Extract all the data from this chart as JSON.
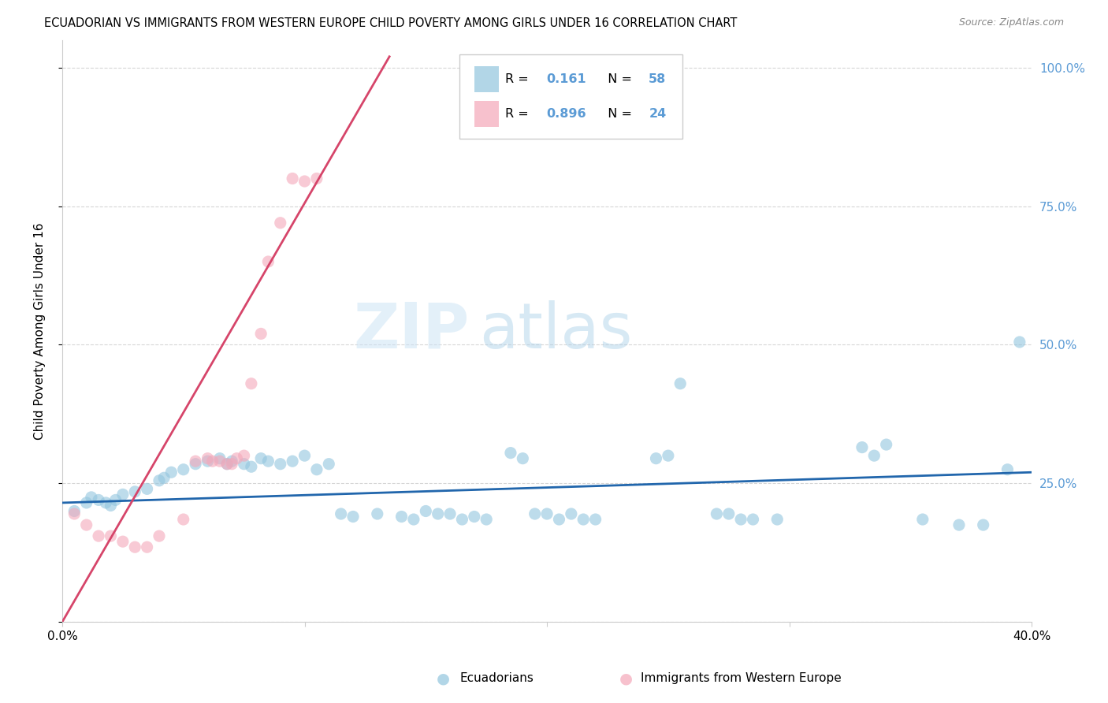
{
  "title": "ECUADORIAN VS IMMIGRANTS FROM WESTERN EUROPE CHILD POVERTY AMONG GIRLS UNDER 16 CORRELATION CHART",
  "source": "Source: ZipAtlas.com",
  "ylabel": "Child Poverty Among Girls Under 16",
  "xlim": [
    0.0,
    0.4
  ],
  "ylim": [
    0.0,
    1.05
  ],
  "color_blue": "#92c5de",
  "color_pink": "#f4a7b9",
  "line_blue": "#2166ac",
  "line_pink": "#d6456a",
  "blue_points": [
    [
      0.005,
      0.2
    ],
    [
      0.01,
      0.215
    ],
    [
      0.012,
      0.225
    ],
    [
      0.015,
      0.22
    ],
    [
      0.018,
      0.215
    ],
    [
      0.02,
      0.21
    ],
    [
      0.022,
      0.22
    ],
    [
      0.025,
      0.23
    ],
    [
      0.03,
      0.235
    ],
    [
      0.035,
      0.24
    ],
    [
      0.04,
      0.255
    ],
    [
      0.042,
      0.26
    ],
    [
      0.045,
      0.27
    ],
    [
      0.05,
      0.275
    ],
    [
      0.055,
      0.285
    ],
    [
      0.06,
      0.29
    ],
    [
      0.065,
      0.295
    ],
    [
      0.068,
      0.285
    ],
    [
      0.07,
      0.29
    ],
    [
      0.075,
      0.285
    ],
    [
      0.078,
      0.28
    ],
    [
      0.082,
      0.295
    ],
    [
      0.085,
      0.29
    ],
    [
      0.09,
      0.285
    ],
    [
      0.095,
      0.29
    ],
    [
      0.1,
      0.3
    ],
    [
      0.105,
      0.275
    ],
    [
      0.11,
      0.285
    ],
    [
      0.115,
      0.195
    ],
    [
      0.12,
      0.19
    ],
    [
      0.13,
      0.195
    ],
    [
      0.14,
      0.19
    ],
    [
      0.145,
      0.185
    ],
    [
      0.15,
      0.2
    ],
    [
      0.155,
      0.195
    ],
    [
      0.16,
      0.195
    ],
    [
      0.165,
      0.185
    ],
    [
      0.17,
      0.19
    ],
    [
      0.175,
      0.185
    ],
    [
      0.185,
      0.305
    ],
    [
      0.19,
      0.295
    ],
    [
      0.195,
      0.195
    ],
    [
      0.2,
      0.195
    ],
    [
      0.205,
      0.185
    ],
    [
      0.21,
      0.195
    ],
    [
      0.215,
      0.185
    ],
    [
      0.22,
      0.185
    ],
    [
      0.245,
      0.295
    ],
    [
      0.25,
      0.3
    ],
    [
      0.255,
      0.43
    ],
    [
      0.27,
      0.195
    ],
    [
      0.275,
      0.195
    ],
    [
      0.28,
      0.185
    ],
    [
      0.285,
      0.185
    ],
    [
      0.295,
      0.185
    ],
    [
      0.33,
      0.315
    ],
    [
      0.335,
      0.3
    ],
    [
      0.34,
      0.32
    ],
    [
      0.355,
      0.185
    ],
    [
      0.37,
      0.175
    ],
    [
      0.38,
      0.175
    ],
    [
      0.39,
      0.275
    ],
    [
      0.395,
      0.505
    ]
  ],
  "pink_points": [
    [
      0.005,
      0.195
    ],
    [
      0.01,
      0.175
    ],
    [
      0.015,
      0.155
    ],
    [
      0.02,
      0.155
    ],
    [
      0.025,
      0.145
    ],
    [
      0.03,
      0.135
    ],
    [
      0.035,
      0.135
    ],
    [
      0.04,
      0.155
    ],
    [
      0.05,
      0.185
    ],
    [
      0.055,
      0.29
    ],
    [
      0.06,
      0.295
    ],
    [
      0.062,
      0.29
    ],
    [
      0.065,
      0.29
    ],
    [
      0.068,
      0.285
    ],
    [
      0.07,
      0.285
    ],
    [
      0.072,
      0.295
    ],
    [
      0.075,
      0.3
    ],
    [
      0.078,
      0.43
    ],
    [
      0.082,
      0.52
    ],
    [
      0.085,
      0.65
    ],
    [
      0.09,
      0.72
    ],
    [
      0.095,
      0.8
    ],
    [
      0.1,
      0.795
    ],
    [
      0.105,
      0.8
    ]
  ]
}
